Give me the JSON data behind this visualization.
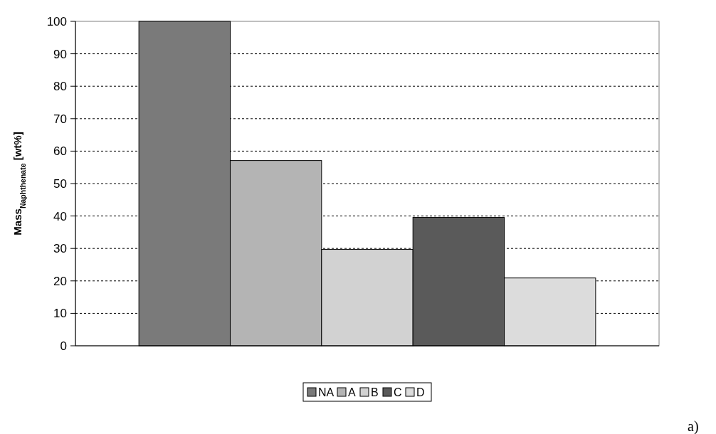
{
  "chart_data": {
    "type": "bar",
    "ylabel": "Mass$_{Naphthenate}$ [wt%]",
    "categories": [
      null
    ],
    "series": [
      {
        "name": "NA",
        "color": "#7a7a7a",
        "values": [
          100
        ]
      },
      {
        "name": "A",
        "color": "#b4b4b4",
        "values": [
          57.1
        ]
      },
      {
        "name": "B",
        "color": "#d2d2d2",
        "values": [
          29.7
        ]
      },
      {
        "name": "C",
        "color": "#5a5a5a",
        "values": [
          39.6
        ]
      },
      {
        "name": "D",
        "color": "#dcdcdc",
        "values": [
          20.9
        ]
      }
    ],
    "ylim": [
      0,
      100
    ],
    "yticks": [
      0,
      10,
      20,
      30,
      40,
      50,
      60,
      70,
      80,
      90,
      100
    ],
    "grid": "y",
    "legend": "bottom",
    "annotations": [
      "a)"
    ]
  }
}
